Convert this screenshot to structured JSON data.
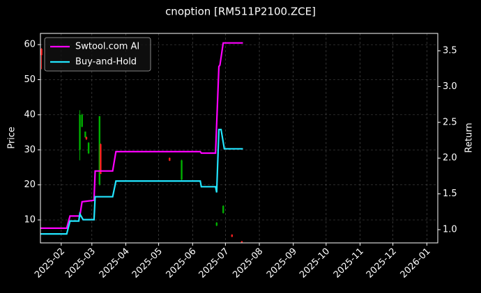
{
  "chart_data": {
    "type": "candlestick",
    "title": "cnoption [RM511P2100.ZCE]",
    "ylabel": "Price",
    "y2label": "Return",
    "x": [
      "2025-01-14",
      "2025-02-18",
      "2025-02-20",
      "2025-02-23",
      "2025-02-24",
      "2025-02-26",
      "2025-03-08",
      "2025-03-09",
      "2025-05-11",
      "2025-05-22",
      "2025-06-23",
      "2025-06-29",
      "2025-07-07",
      "2025-07-16"
    ],
    "open": [
      58.8,
      30,
      36.6,
      33.6,
      33.6,
      29,
      20.1,
      31.6,
      27.7,
      21.5,
      8.4,
      12,
      5.8,
      3.9
    ],
    "high": [
      59,
      41.3,
      40.3,
      35.2,
      33.8,
      32.2,
      39.6,
      31.8,
      27.8,
      27.2,
      9.4,
      14.2,
      5.9,
      4
    ],
    "low": [
      53,
      27,
      36.4,
      33.4,
      32.8,
      28.8,
      19.8,
      23.1,
      26.8,
      21.3,
      8.2,
      11.8,
      5.1,
      3.5
    ],
    "close": [
      57,
      40,
      40,
      35.2,
      33,
      32,
      39.6,
      23.1,
      26.9,
      27,
      9.2,
      14,
      5.2,
      3.6
    ],
    "up_color": "#00b000",
    "down_color": "#ff2020",
    "series": [
      {
        "name": "Swtool.com AI",
        "color": "#ff00ff",
        "axis": "y2",
        "x": [
          "2025-01-13",
          "2025-02-06",
          "2025-02-09",
          "2025-02-18",
          "2025-02-20",
          "2025-03-03",
          "2025-03-04",
          "2025-03-20",
          "2025-03-23",
          "2025-06-08",
          "2025-06-09",
          "2025-06-22",
          "2025-06-25",
          "2025-06-26",
          "2025-06-29",
          "2025-07-17"
        ],
        "values": [
          1.02,
          1.02,
          1.19,
          1.19,
          1.39,
          1.41,
          1.82,
          1.82,
          2.09,
          2.09,
          2.07,
          2.07,
          3.28,
          3.3,
          3.61,
          3.61
        ]
      },
      {
        "name": "Buy-and-Hold",
        "color": "#22e5ff",
        "axis": "y2",
        "x": [
          "2025-01-13",
          "2025-02-06",
          "2025-02-09",
          "2025-02-17",
          "2025-02-18",
          "2025-02-21",
          "2025-03-03",
          "2025-03-04",
          "2025-03-20",
          "2025-03-23",
          "2025-06-08",
          "2025-06-09",
          "2025-06-22",
          "2025-06-23",
          "2025-06-25",
          "2025-06-27",
          "2025-06-30",
          "2025-07-17"
        ],
        "values": [
          0.94,
          0.94,
          1.12,
          1.12,
          1.22,
          1.14,
          1.14,
          1.46,
          1.46,
          1.68,
          1.68,
          1.6,
          1.6,
          1.52,
          2.4,
          2.4,
          2.13,
          2.13
        ]
      }
    ],
    "xlim": [
      "2025-01-13",
      "2026-01-11"
    ],
    "xticks": [
      {
        "value": "2025-02-01",
        "label": "2025-02"
      },
      {
        "value": "2025-03-01",
        "label": "2025-03"
      },
      {
        "value": "2025-04-01",
        "label": "2025-04"
      },
      {
        "value": "2025-05-01",
        "label": "2025-05"
      },
      {
        "value": "2025-06-01",
        "label": "2025-06"
      },
      {
        "value": "2025-07-01",
        "label": "2025-07"
      },
      {
        "value": "2025-08-01",
        "label": "2025-08"
      },
      {
        "value": "2025-09-01",
        "label": "2025-09"
      },
      {
        "value": "2025-10-01",
        "label": "2025-10"
      },
      {
        "value": "2025-11-01",
        "label": "2025-11"
      },
      {
        "value": "2025-12-01",
        "label": "2025-12"
      },
      {
        "value": "2026-01-01",
        "label": "2026-01"
      }
    ],
    "ylim": [
      3.45,
      63.2
    ],
    "yticks": [
      10,
      20,
      30,
      40,
      50,
      60
    ],
    "y2lim": [
      0.815,
      3.743
    ],
    "y2ticks": [
      {
        "value": 1,
        "label": "1.0"
      },
      1.5,
      {
        "value": 2,
        "label": "2.0"
      },
      2.5,
      {
        "value": 3,
        "label": "3.0"
      },
      3.5
    ],
    "grid": true,
    "legend": "upper left"
  }
}
